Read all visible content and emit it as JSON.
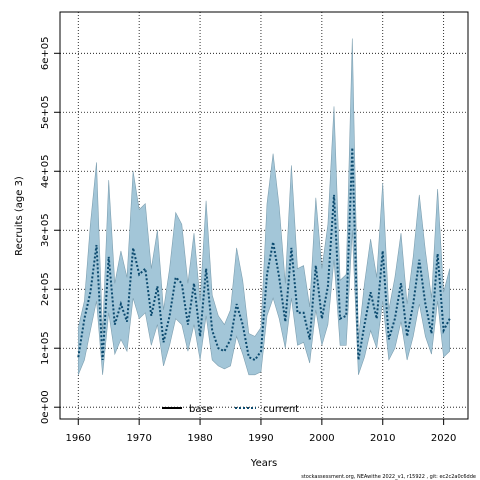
{
  "chart_data": {
    "type": "area",
    "xlabel": "Years",
    "ylabel": "Recruits (age 3)",
    "xlim": [
      1957,
      2024
    ],
    "ylim": [
      -20000,
      670000
    ],
    "xticks": [
      1960,
      1970,
      1980,
      1990,
      2000,
      2010,
      2020
    ],
    "yticks": [
      0,
      100000,
      200000,
      300000,
      400000,
      500000,
      600000
    ],
    "ytick_labels": [
      "0e+00",
      "1e+05",
      "2e+05",
      "3e+05",
      "4e+05",
      "5e+05",
      "6e+05"
    ],
    "grid": true,
    "grid_style": "dotted",
    "legend_position": "bottom-center",
    "series": [
      {
        "name": "base",
        "style": "solid",
        "color": "#000000",
        "x": [],
        "values": []
      },
      {
        "name": "current",
        "style": "dotted",
        "color": "#0b4a6f",
        "x": [
          1960,
          1961,
          1962,
          1963,
          1964,
          1965,
          1966,
          1967,
          1968,
          1969,
          1970,
          1971,
          1972,
          1973,
          1974,
          1975,
          1976,
          1977,
          1978,
          1979,
          1980,
          1981,
          1982,
          1983,
          1984,
          1985,
          1986,
          1987,
          1988,
          1989,
          1990,
          1991,
          1992,
          1993,
          1994,
          1995,
          1996,
          1997,
          1998,
          1999,
          2000,
          2001,
          2002,
          2003,
          2004,
          2005,
          2006,
          2007,
          2008,
          2009,
          2010,
          2011,
          2012,
          2013,
          2014,
          2015,
          2016,
          2017,
          2018,
          2019,
          2020,
          2021
        ],
        "values": [
          85000,
          150000,
          195000,
          275000,
          80000,
          255000,
          140000,
          175000,
          145000,
          270000,
          225000,
          235000,
          155000,
          205000,
          110000,
          155000,
          220000,
          210000,
          140000,
          210000,
          120000,
          235000,
          130000,
          100000,
          95000,
          115000,
          175000,
          140000,
          85000,
          80000,
          95000,
          225000,
          280000,
          220000,
          145000,
          270000,
          160000,
          160000,
          115000,
          240000,
          150000,
          205000,
          360000,
          150000,
          155000,
          440000,
          80000,
          140000,
          195000,
          150000,
          265000,
          115000,
          150000,
          210000,
          120000,
          175000,
          250000,
          175000,
          125000,
          260000,
          130000,
          150000
        ]
      }
    ],
    "confidence_band": {
      "x": [
        1960,
        1961,
        1962,
        1963,
        1964,
        1965,
        1966,
        1967,
        1968,
        1969,
        1970,
        1971,
        1972,
        1973,
        1974,
        1975,
        1976,
        1977,
        1978,
        1979,
        1980,
        1981,
        1982,
        1983,
        1984,
        1985,
        1986,
        1987,
        1988,
        1989,
        1990,
        1991,
        1992,
        1993,
        1994,
        1995,
        1996,
        1997,
        1998,
        1999,
        2000,
        2001,
        2002,
        2003,
        2004,
        2005,
        2006,
        2007,
        2008,
        2009,
        2010,
        2011,
        2012,
        2013,
        2014,
        2015,
        2016,
        2017,
        2018,
        2019,
        2020,
        2021
      ],
      "lower": [
        55000,
        80000,
        130000,
        180000,
        55000,
        160000,
        90000,
        115000,
        95000,
        185000,
        150000,
        160000,
        105000,
        140000,
        70000,
        105000,
        150000,
        140000,
        95000,
        140000,
        80000,
        155000,
        80000,
        70000,
        65000,
        70000,
        120000,
        90000,
        55000,
        55000,
        60000,
        155000,
        185000,
        150000,
        100000,
        185000,
        105000,
        110000,
        75000,
        165000,
        105000,
        140000,
        250000,
        105000,
        105000,
        300000,
        55000,
        85000,
        130000,
        100000,
        180000,
        80000,
        100000,
        145000,
        80000,
        120000,
        175000,
        120000,
        90000,
        180000,
        85000,
        95000
      ],
      "upper": [
        135000,
        180000,
        310000,
        415000,
        125000,
        385000,
        210000,
        265000,
        220000,
        400000,
        335000,
        345000,
        235000,
        300000,
        165000,
        235000,
        330000,
        310000,
        210000,
        295000,
        180000,
        350000,
        190000,
        155000,
        140000,
        165000,
        270000,
        215000,
        125000,
        120000,
        135000,
        345000,
        430000,
        340000,
        210000,
        410000,
        235000,
        240000,
        170000,
        355000,
        235000,
        310000,
        510000,
        215000,
        225000,
        625000,
        115000,
        210000,
        285000,
        220000,
        380000,
        165000,
        220000,
        295000,
        175000,
        255000,
        360000,
        265000,
        185000,
        370000,
        195000,
        235000
      ]
    },
    "band_color": "#a3c6d8",
    "band_edge_color": "#7d9fb0"
  },
  "legend": {
    "base_label": "base",
    "current_label": "current"
  },
  "footer": {
    "text": "stockassessment.org, NEAwithe 2022_v1, r15922 , git: ec2c2a0c6dde"
  }
}
